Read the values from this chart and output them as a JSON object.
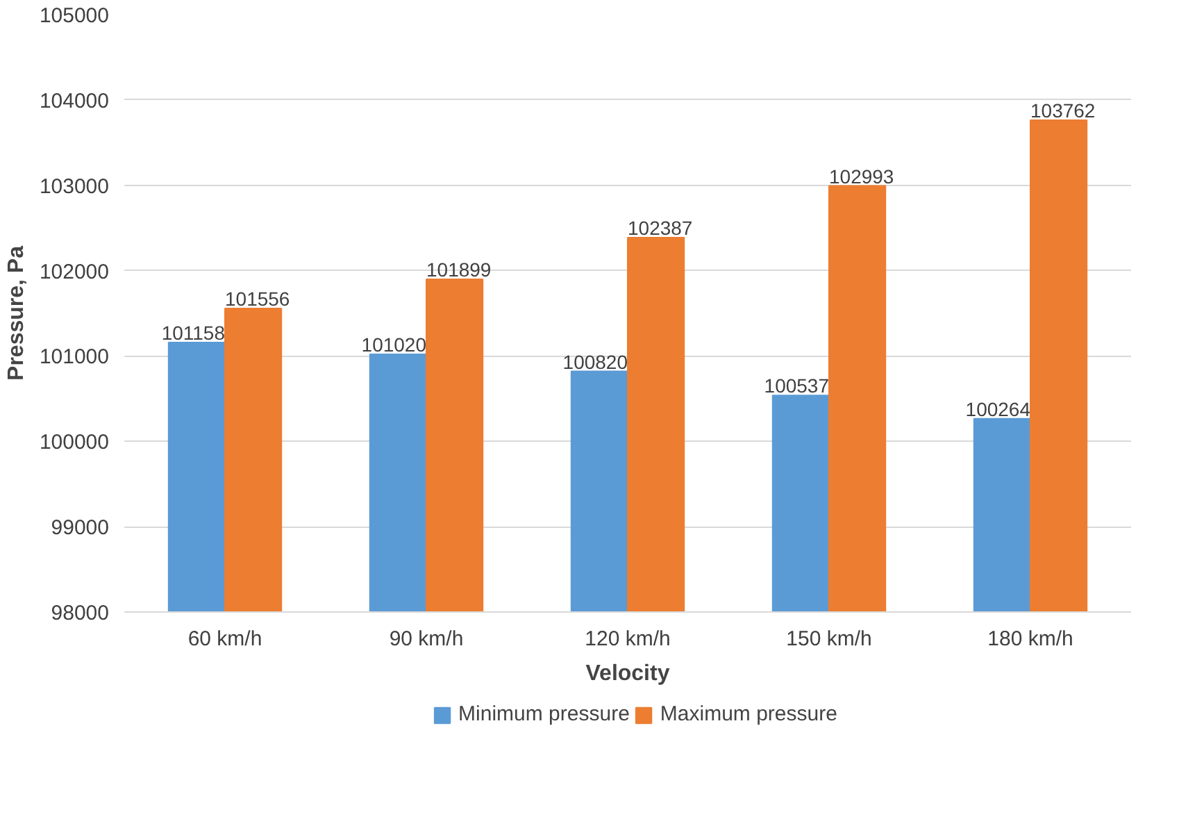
{
  "chart_data": {
    "type": "bar",
    "xlabel": "Velocity",
    "ylabel": "Pressure, Pa",
    "categories": [
      "60 km/h",
      "90 km/h",
      "120 km/h",
      "150 km/h",
      "180 km/h"
    ],
    "series": [
      {
        "name": "Minimum pressure",
        "color": "#5b9bd5",
        "values": [
          101158,
          101020,
          100820,
          100537,
          100264
        ]
      },
      {
        "name": "Maximum pressure",
        "color": "#ed7d31",
        "values": [
          101556,
          101899,
          102387,
          102993,
          103762
        ]
      }
    ],
    "ylim": [
      98000,
      105000
    ],
    "yticks": [
      98000,
      99000,
      100000,
      101000,
      102000,
      103000,
      104000,
      105000
    ],
    "grid": "y",
    "legend": "bottom",
    "data_labels": true
  }
}
